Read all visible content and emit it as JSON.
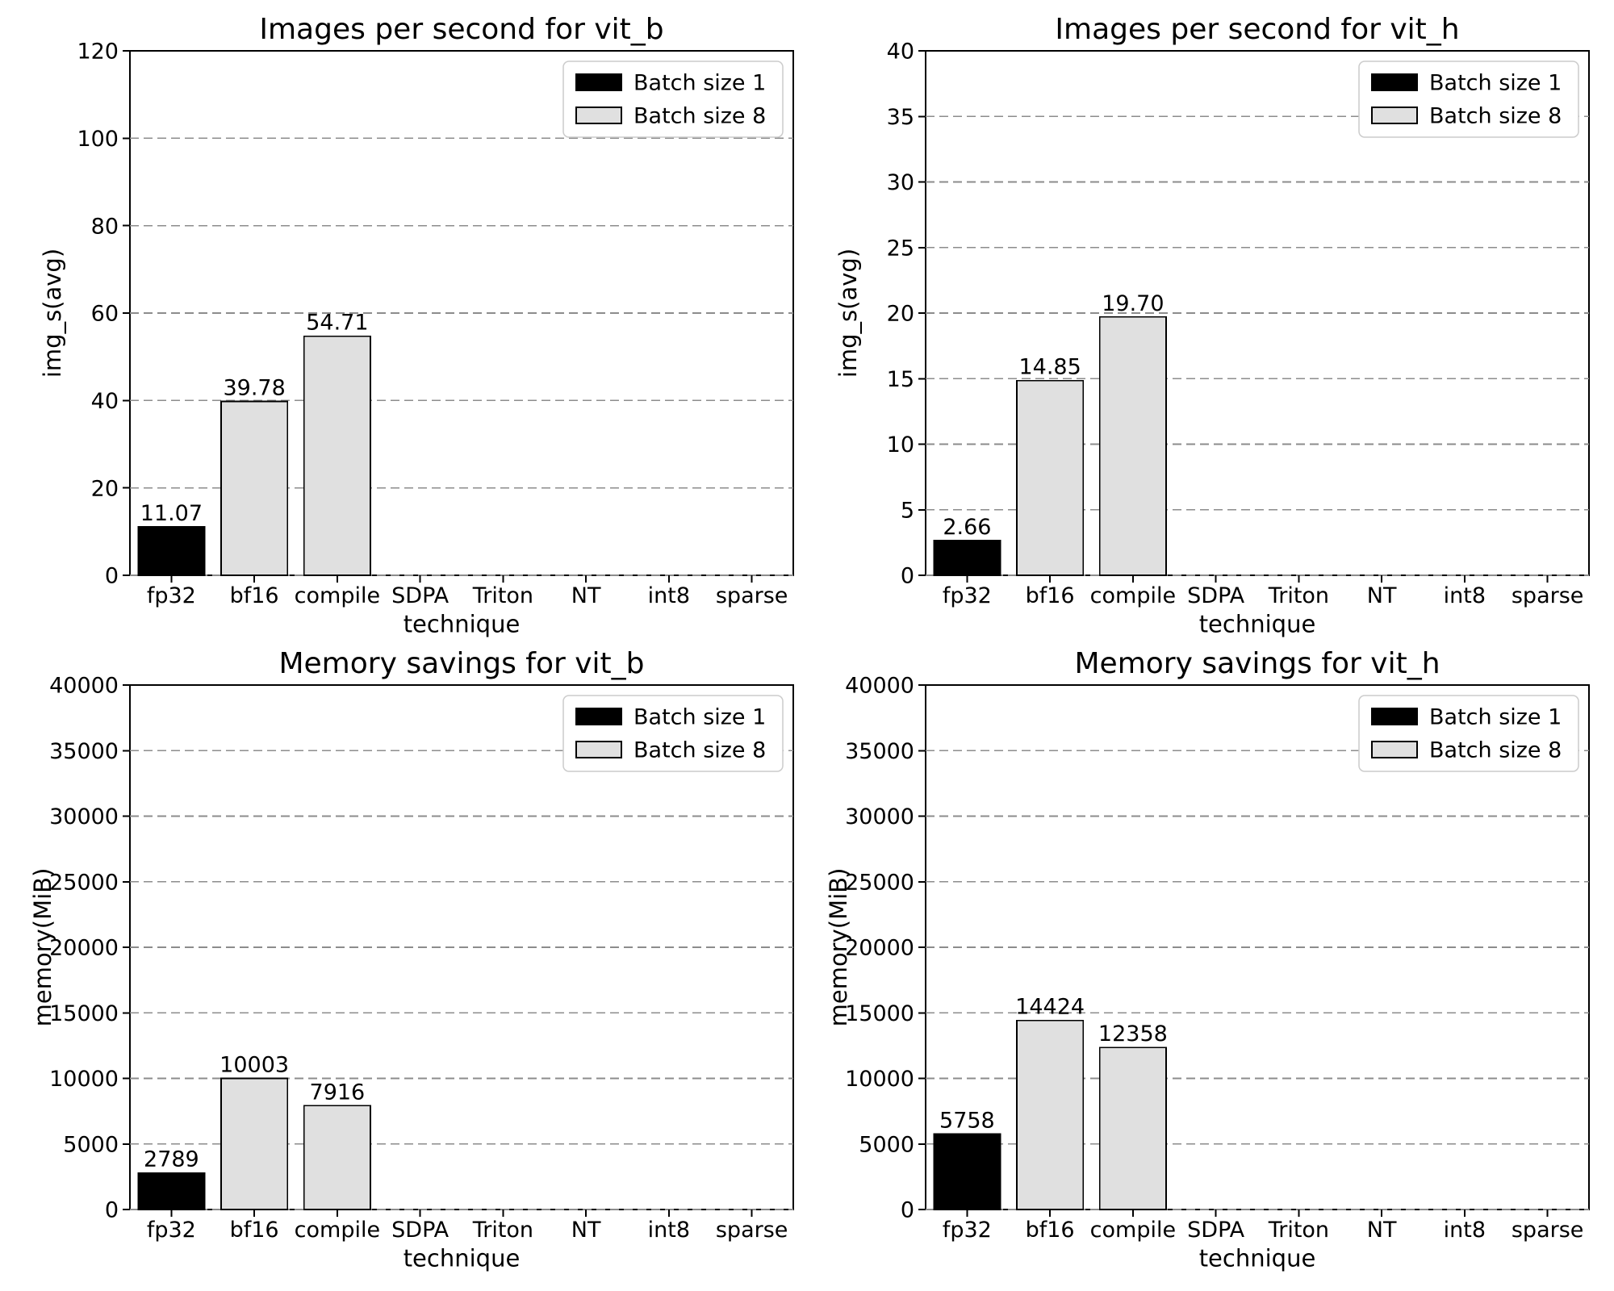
{
  "figure": {
    "background": "#ffffff",
    "series_colors": {
      "batch1": "#000000",
      "batch8": "#e0e0e0"
    },
    "grid_color": "#8c8c8c",
    "bar_edge_color": "#000000"
  },
  "chart_data": [
    {
      "type": "bar",
      "title": "Images per second for vit_b",
      "xlabel": "technique",
      "ylabel": "img_s(avg)",
      "categories": [
        "fp32",
        "bf16",
        "compile",
        "SDPA",
        "Triton",
        "NT",
        "int8",
        "sparse"
      ],
      "ylim": [
        0,
        120
      ],
      "yticks": [
        0,
        20,
        40,
        60,
        80,
        100,
        120
      ],
      "grid": true,
      "legend_position": "upper right",
      "series": [
        {
          "name": "Batch size 1",
          "color": "#000000",
          "values": [
            11.07,
            null,
            null,
            null,
            null,
            null,
            null,
            null
          ],
          "labels": [
            "11.07",
            null,
            null,
            null,
            null,
            null,
            null,
            null
          ]
        },
        {
          "name": "Batch size 8",
          "color": "#e0e0e0",
          "values": [
            null,
            39.78,
            54.71,
            null,
            null,
            null,
            null,
            null
          ],
          "labels": [
            null,
            "39.78",
            "54.71",
            null,
            null,
            null,
            null,
            null
          ]
        }
      ]
    },
    {
      "type": "bar",
      "title": "Images per second for vit_h",
      "xlabel": "technique",
      "ylabel": "img_s(avg)",
      "categories": [
        "fp32",
        "bf16",
        "compile",
        "SDPA",
        "Triton",
        "NT",
        "int8",
        "sparse"
      ],
      "ylim": [
        0,
        40
      ],
      "yticks": [
        0,
        5,
        10,
        15,
        20,
        25,
        30,
        35,
        40
      ],
      "grid": true,
      "legend_position": "upper right",
      "series": [
        {
          "name": "Batch size 1",
          "color": "#000000",
          "values": [
            2.66,
            null,
            null,
            null,
            null,
            null,
            null,
            null
          ],
          "labels": [
            "2.66",
            null,
            null,
            null,
            null,
            null,
            null,
            null
          ]
        },
        {
          "name": "Batch size 8",
          "color": "#e0e0e0",
          "values": [
            null,
            14.85,
            19.7,
            null,
            null,
            null,
            null,
            null
          ],
          "labels": [
            null,
            "14.85",
            "19.70",
            null,
            null,
            null,
            null,
            null
          ]
        }
      ]
    },
    {
      "type": "bar",
      "title": "Memory savings for vit_b",
      "xlabel": "technique",
      "ylabel": "memory(MiB)",
      "categories": [
        "fp32",
        "bf16",
        "compile",
        "SDPA",
        "Triton",
        "NT",
        "int8",
        "sparse"
      ],
      "ylim": [
        0,
        40000
      ],
      "yticks": [
        0,
        5000,
        10000,
        15000,
        20000,
        25000,
        30000,
        35000,
        40000
      ],
      "grid": true,
      "legend_position": "upper right",
      "series": [
        {
          "name": "Batch size 1",
          "color": "#000000",
          "values": [
            2789,
            null,
            null,
            null,
            null,
            null,
            null,
            null
          ],
          "labels": [
            "2789",
            null,
            null,
            null,
            null,
            null,
            null,
            null
          ]
        },
        {
          "name": "Batch size 8",
          "color": "#e0e0e0",
          "values": [
            null,
            10003,
            7916,
            null,
            null,
            null,
            null,
            null
          ],
          "labels": [
            null,
            "10003",
            "7916",
            null,
            null,
            null,
            null,
            null
          ]
        }
      ]
    },
    {
      "type": "bar",
      "title": "Memory savings for vit_h",
      "xlabel": "technique",
      "ylabel": "memory(MiB)",
      "categories": [
        "fp32",
        "bf16",
        "compile",
        "SDPA",
        "Triton",
        "NT",
        "int8",
        "sparse"
      ],
      "ylim": [
        0,
        40000
      ],
      "yticks": [
        0,
        5000,
        10000,
        15000,
        20000,
        25000,
        30000,
        35000,
        40000
      ],
      "grid": true,
      "legend_position": "upper right",
      "series": [
        {
          "name": "Batch size 1",
          "color": "#000000",
          "values": [
            5758,
            null,
            null,
            null,
            null,
            null,
            null,
            null
          ],
          "labels": [
            "5758",
            null,
            null,
            null,
            null,
            null,
            null,
            null
          ]
        },
        {
          "name": "Batch size 8",
          "color": "#e0e0e0",
          "values": [
            null,
            14424,
            12358,
            null,
            null,
            null,
            null,
            null
          ],
          "labels": [
            null,
            "14424",
            "12358",
            null,
            null,
            null,
            null,
            null
          ]
        }
      ]
    }
  ]
}
